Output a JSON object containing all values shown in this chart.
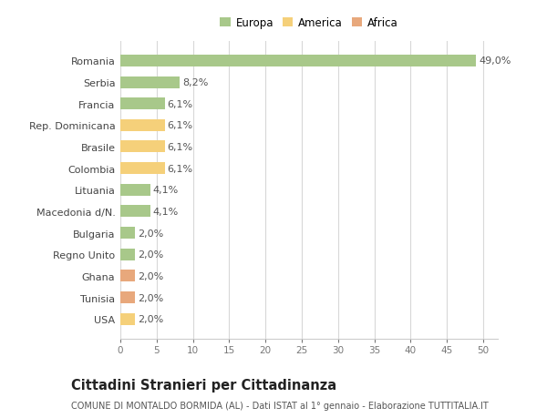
{
  "categories": [
    "Romania",
    "Serbia",
    "Francia",
    "Rep. Dominicana",
    "Brasile",
    "Colombia",
    "Lituania",
    "Macedonia d/N.",
    "Bulgaria",
    "Regno Unito",
    "Ghana",
    "Tunisia",
    "USA"
  ],
  "values": [
    49.0,
    8.2,
    6.1,
    6.1,
    6.1,
    6.1,
    4.1,
    4.1,
    2.0,
    2.0,
    2.0,
    2.0,
    2.0
  ],
  "continents": [
    "Europa",
    "Europa",
    "Europa",
    "America",
    "America",
    "America",
    "Europa",
    "Europa",
    "Europa",
    "Europa",
    "Africa",
    "Africa",
    "America"
  ],
  "colors": {
    "Europa": "#a8c88a",
    "America": "#f5d07a",
    "Africa": "#e8a87c"
  },
  "xlim": [
    0,
    52
  ],
  "xticks": [
    0,
    5,
    10,
    15,
    20,
    25,
    30,
    35,
    40,
    45,
    50
  ],
  "title": "Cittadini Stranieri per Cittadinanza",
  "subtitle": "COMUNE DI MONTALDO BORMIDA (AL) - Dati ISTAT al 1° gennaio - Elaborazione TUTTITALIA.IT",
  "background_color": "#ffffff",
  "grid_color": "#d8d8d8",
  "bar_height": 0.55,
  "label_fontsize": 8,
  "value_label_fontsize": 8,
  "title_fontsize": 10.5,
  "subtitle_fontsize": 7
}
